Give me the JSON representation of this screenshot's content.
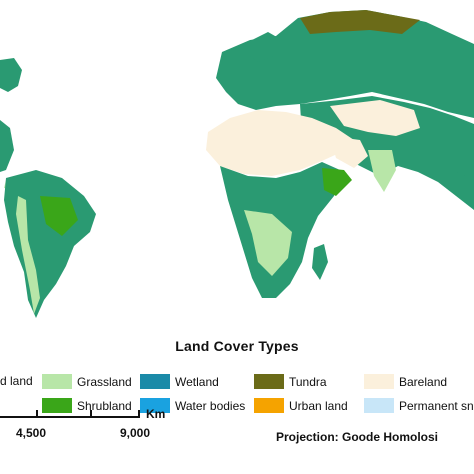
{
  "legend": {
    "title": "Land Cover  Types",
    "items": [
      {
        "key": "cultivated-land",
        "label": "d land",
        "color": "#f6efc0"
      },
      {
        "key": "grassland",
        "label": "Grassland",
        "color": "#b8e6a8"
      },
      {
        "key": "shrubland",
        "label": "Shrubland",
        "color": "#3aa619"
      },
      {
        "key": "wetland",
        "label": "Wetland",
        "color": "#1a8aa8"
      },
      {
        "key": "water-bodies",
        "label": "Water bodies",
        "color": "#1aa2e0"
      },
      {
        "key": "tundra",
        "label": "Tundra",
        "color": "#6b6b18"
      },
      {
        "key": "urban-land",
        "label": "Urban land",
        "color": "#f5a300"
      },
      {
        "key": "bareland",
        "label": "Bareland",
        "color": "#fbf0dc"
      },
      {
        "key": "permanent-snow",
        "label": "Permanent sno",
        "color": "#c8e6f8"
      }
    ]
  },
  "scale": {
    "unit": "Km",
    "ticks": [
      "4,500",
      "9,000"
    ]
  },
  "projection": "Projection: Goode Homolosi",
  "map_colors": {
    "forest": "#2a9a72",
    "forest_dark": "#1e8a60"
  }
}
